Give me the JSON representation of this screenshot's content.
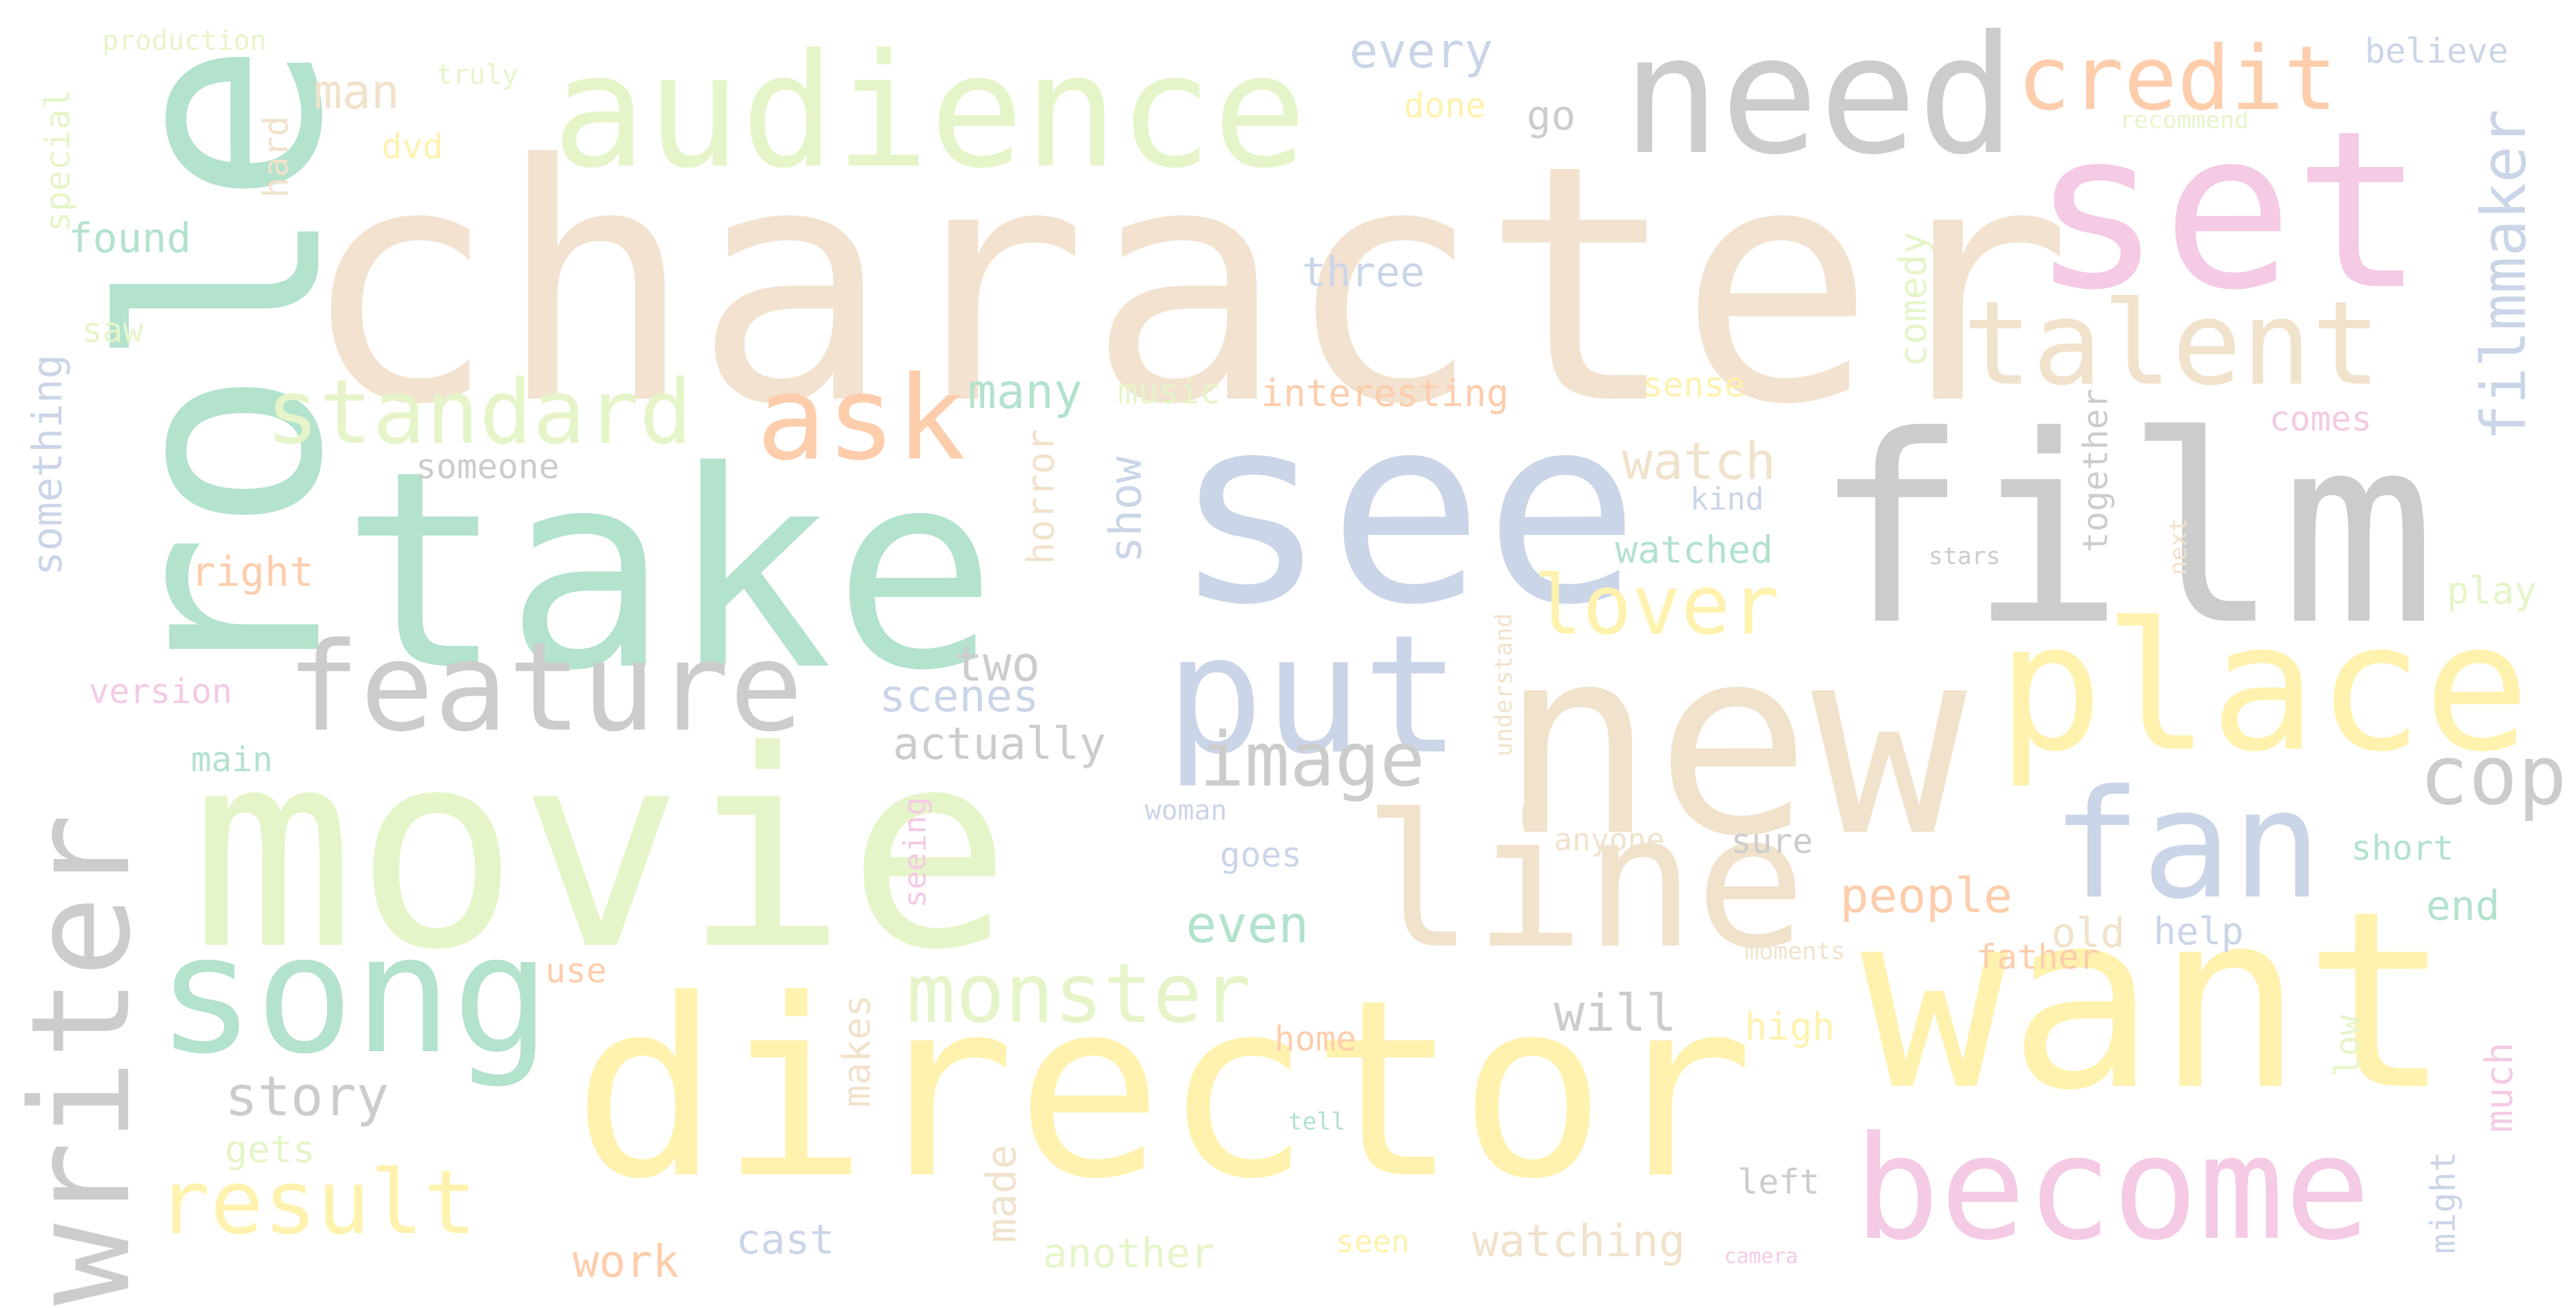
{
  "background_color": "#ffffff",
  "words": [
    {
      "text": "character",
      "color": "#f2e2cf"
    },
    {
      "text": "role",
      "color": "#b3e2cd"
    },
    {
      "text": "take",
      "color": "#b3e2cd"
    },
    {
      "text": "see",
      "color": "#cbd5e8"
    },
    {
      "text": "film",
      "color": "#cccccc"
    },
    {
      "text": "movie",
      "color": "#e6f5c9"
    },
    {
      "text": "director",
      "color": "#fff2ae"
    },
    {
      "text": "want",
      "color": "#fff2ae"
    },
    {
      "text": "new",
      "color": "#f1e2cc"
    },
    {
      "text": "place",
      "color": "#fff2ae"
    },
    {
      "text": "audience",
      "color": "#e6f5c9"
    },
    {
      "text": "need",
      "color": "#cccccc"
    },
    {
      "text": "set",
      "color": "#f4cae4"
    },
    {
      "text": "writer",
      "color": "#cccccc"
    },
    {
      "text": "song",
      "color": "#b3e2cd"
    },
    {
      "text": "put",
      "color": "#cbd5e8"
    },
    {
      "text": "line",
      "color": "#f1e2cc"
    },
    {
      "text": "become",
      "color": "#f4cae4"
    },
    {
      "text": "fan",
      "color": "#cbd5e8"
    },
    {
      "text": "talent",
      "color": "#f1e2cc"
    },
    {
      "text": "feature",
      "color": "#cccccc"
    },
    {
      "text": "credit",
      "color": "#fdcdac"
    },
    {
      "text": "ask",
      "color": "#fdcdac"
    },
    {
      "text": "standard",
      "color": "#e6f5c9"
    },
    {
      "text": "result",
      "color": "#fff2ae"
    },
    {
      "text": "monster",
      "color": "#e6f5c9"
    },
    {
      "text": "image",
      "color": "#cccccc"
    },
    {
      "text": "lover",
      "color": "#fff2ae"
    },
    {
      "text": "cop",
      "color": "#cccccc"
    },
    {
      "text": "filmmaker",
      "color": "#cbd5e8"
    },
    {
      "text": "story",
      "color": "#cccccc"
    },
    {
      "text": "man",
      "color": "#f1e2cc"
    },
    {
      "text": "every",
      "color": "#cbd5e8"
    },
    {
      "text": "go",
      "color": "#cccccc"
    },
    {
      "text": "dvd",
      "color": "#fff2ae"
    },
    {
      "text": "done",
      "color": "#fff2ae"
    },
    {
      "text": "truly",
      "color": "#e6f5c9"
    },
    {
      "text": "production",
      "color": "#e6f5c9"
    },
    {
      "text": "believe",
      "color": "#cbd5e8"
    },
    {
      "text": "recommend",
      "color": "#e6f5c9"
    },
    {
      "text": "special",
      "color": "#e6f5c9"
    },
    {
      "text": "hard",
      "color": "#f1e2cc"
    },
    {
      "text": "found",
      "color": "#b3e2cd"
    },
    {
      "text": "saw",
      "color": "#e6f5c9"
    },
    {
      "text": "three",
      "color": "#cbd5e8"
    },
    {
      "text": "something",
      "color": "#cbd5e8"
    },
    {
      "text": "many",
      "color": "#b3e2cd"
    },
    {
      "text": "music",
      "color": "#e6f5c9"
    },
    {
      "text": "interesting",
      "color": "#fdcdac"
    },
    {
      "text": "sense",
      "color": "#fff2ae"
    },
    {
      "text": "comedy",
      "color": "#e6f5c9"
    },
    {
      "text": "comes",
      "color": "#f4cae4"
    },
    {
      "text": "someone",
      "color": "#cccccc"
    },
    {
      "text": "watch",
      "color": "#f1e2cc"
    },
    {
      "text": "kind",
      "color": "#cbd5e8"
    },
    {
      "text": "together",
      "color": "#cccccc"
    },
    {
      "text": "next",
      "color": "#f1e2cc"
    },
    {
      "text": "stars",
      "color": "#cccccc"
    },
    {
      "text": "right",
      "color": "#fdcdac"
    },
    {
      "text": "horror",
      "color": "#f1e2cc"
    },
    {
      "text": "show",
      "color": "#cbd5e8"
    },
    {
      "text": "watched",
      "color": "#b3e2cd"
    },
    {
      "text": "play",
      "color": "#e6f5c9"
    },
    {
      "text": "version",
      "color": "#f4cae4"
    },
    {
      "text": "two",
      "color": "#cccccc"
    },
    {
      "text": "scenes",
      "color": "#cbd5e8"
    },
    {
      "text": "actually",
      "color": "#cccccc"
    },
    {
      "text": "main",
      "color": "#b3e2cd"
    },
    {
      "text": "understand",
      "color": "#f1e2cc"
    },
    {
      "text": "woman",
      "color": "#cbd5e8"
    },
    {
      "text": "seeing",
      "color": "#f4cae4"
    },
    {
      "text": "anyone",
      "color": "#f1e2cc"
    },
    {
      "text": "sure",
      "color": "#cccccc"
    },
    {
      "text": "short",
      "color": "#b3e2cd"
    },
    {
      "text": "goes",
      "color": "#cbd5e8"
    },
    {
      "text": "people",
      "color": "#fdcdac"
    },
    {
      "text": "end",
      "color": "#b3e2cd"
    },
    {
      "text": "even",
      "color": "#b3e2cd"
    },
    {
      "text": "old",
      "color": "#f1e2cc"
    },
    {
      "text": "help",
      "color": "#cbd5e8"
    },
    {
      "text": "moments",
      "color": "#f1e2cc"
    },
    {
      "text": "father",
      "color": "#fdcdac"
    },
    {
      "text": "use",
      "color": "#fdcdac"
    },
    {
      "text": "will",
      "color": "#cccccc"
    },
    {
      "text": "high",
      "color": "#fff2ae"
    },
    {
      "text": "home",
      "color": "#fdcdac"
    },
    {
      "text": "low",
      "color": "#e6f5c9"
    },
    {
      "text": "much",
      "color": "#f4cae4"
    },
    {
      "text": "makes",
      "color": "#f1e2cc"
    },
    {
      "text": "gets",
      "color": "#e6f5c9"
    },
    {
      "text": "tell",
      "color": "#b3e2cd"
    },
    {
      "text": "left",
      "color": "#cccccc"
    },
    {
      "text": "might",
      "color": "#cbd5e8"
    },
    {
      "text": "made",
      "color": "#f1e2cc"
    },
    {
      "text": "work",
      "color": "#fdcdac"
    },
    {
      "text": "cast",
      "color": "#cbd5e8"
    },
    {
      "text": "another",
      "color": "#e6f5c9"
    },
    {
      "text": "seen",
      "color": "#fff2ae"
    },
    {
      "text": "watching",
      "color": "#f1e2cc"
    },
    {
      "text": "camera",
      "color": "#f4cae4"
    }
  ]
}
